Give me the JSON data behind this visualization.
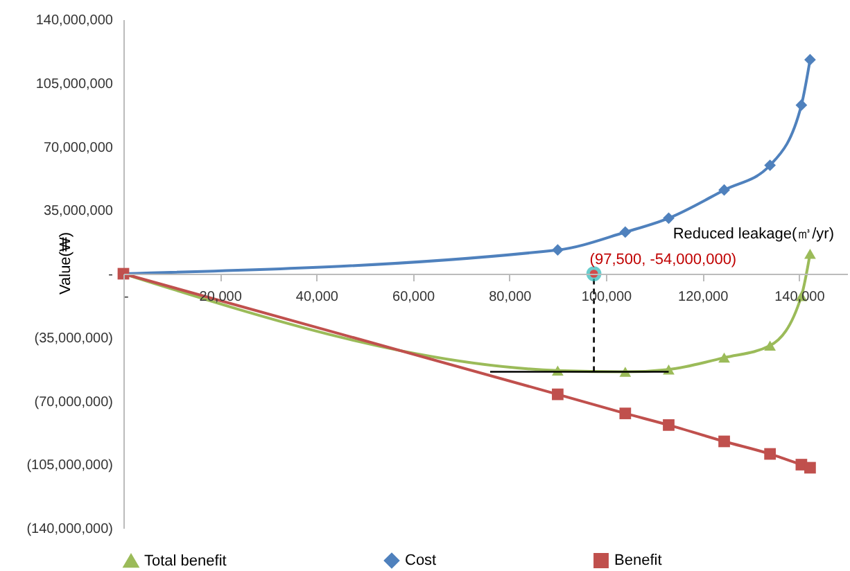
{
  "chart_data": {
    "type": "line",
    "xlabel": "Reduced  leakage(㎥/yr)",
    "ylabel": "Value(₩)",
    "xlim": [
      0,
      150000
    ],
    "ylim": [
      -140000000,
      140000000
    ],
    "xticks": [
      {
        "value": 0,
        "label": "-"
      },
      {
        "value": 20000,
        "label": "20,000"
      },
      {
        "value": 40000,
        "label": "40,000"
      },
      {
        "value": 60000,
        "label": "60,000"
      },
      {
        "value": 80000,
        "label": "80,000"
      },
      {
        "value": 100000,
        "label": "100,000"
      },
      {
        "value": 120000,
        "label": "120,000"
      },
      {
        "value": 140000,
        "label": "140,000"
      }
    ],
    "yticks": [
      {
        "value": -140000000,
        "label": "(140,000,000)"
      },
      {
        "value": -105000000,
        "label": "(105,000,000)"
      },
      {
        "value": -70000000,
        "label": "(70,000,000)"
      },
      {
        "value": -35000000,
        "label": "(35,000,000)"
      },
      {
        "value": 0,
        "label": "-"
      },
      {
        "value": 35000000,
        "label": "35,000,000"
      },
      {
        "value": 70000000,
        "label": "70,000,000"
      },
      {
        "value": 105000000,
        "label": "105,000,000"
      },
      {
        "value": 140000000,
        "label": "140,000,000"
      }
    ],
    "grid": false,
    "legend": "bottom",
    "line_style": "solid",
    "series": [
      {
        "name": "Total benefit",
        "color": "#9bbb59",
        "marker": "triangle",
        "x": [
          0,
          90000,
          104000,
          113000,
          124500,
          134000,
          140500,
          142300
        ],
        "values": [
          0,
          -53300000,
          -54000000,
          -52700000,
          -46200000,
          -39600000,
          -12300000,
          11000000
        ]
      },
      {
        "name": "Cost",
        "color": "#4f81bd",
        "marker": "diamond",
        "x": [
          0,
          90000,
          104000,
          113000,
          124500,
          134000,
          140500,
          142300
        ],
        "values": [
          0,
          13100000,
          22900000,
          30600000,
          46100000,
          59700000,
          92800000,
          117800000
        ]
      },
      {
        "name": "Benefit",
        "color": "#c0504d",
        "marker": "square",
        "x": [
          0,
          90000,
          104000,
          113000,
          124500,
          134000,
          140500,
          142300
        ],
        "values": [
          0,
          -66400000,
          -76900000,
          -83300000,
          -92300000,
          -99200000,
          -105100000,
          -106800000
        ]
      },
      {
        "type": "line",
        "color": "#000000",
        "marker": "none",
        "x": [
          76000,
          113000
        ],
        "values": [
          -54000000,
          -54000000
        ]
      },
      {
        "type": "line",
        "color": "#000000",
        "marker": "none",
        "line_style": "dashed",
        "x": [
          97500,
          97500
        ],
        "values": [
          -54000000,
          0
        ]
      },
      {
        "type": "scatter",
        "color": "#c00000",
        "marker": "circle",
        "x": [
          97500
        ],
        "values": [
          0
        ]
      }
    ],
    "annotations": [
      {
        "text": "(97,500, -54,000,000)",
        "x": 97500,
        "y": 0
      }
    ]
  }
}
